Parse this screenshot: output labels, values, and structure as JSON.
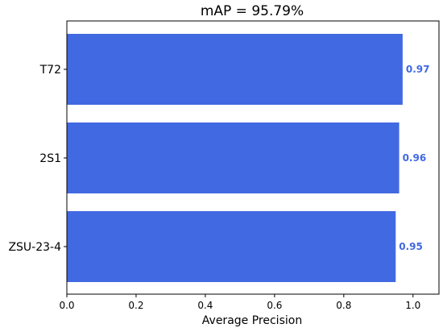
{
  "chart_data": {
    "type": "bar",
    "orientation": "horizontal",
    "title": "mAP = 95.79%",
    "xlabel": "Average Precision",
    "ylabel": "",
    "xlim": [
      0,
      1.075
    ],
    "xticks": [
      "0.0",
      "0.2",
      "0.4",
      "0.6",
      "0.8",
      "1.0"
    ],
    "categories": [
      "T72",
      "2S1",
      "ZSU-23-4"
    ],
    "values": [
      0.97,
      0.96,
      0.95
    ],
    "value_labels": [
      "0.97",
      "0.96",
      "0.95"
    ],
    "bar_color": "#4169e1",
    "label_color": "#4169e1",
    "grid": false,
    "legend": "none"
  }
}
